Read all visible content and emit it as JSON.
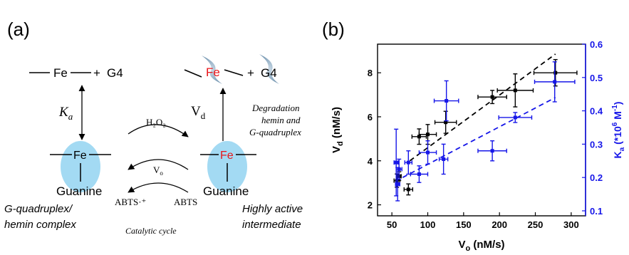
{
  "panel_a": {
    "label": "(a)",
    "top_left": {
      "fe": "Fe",
      "plus": "+",
      "g4": "G4"
    },
    "top_right": {
      "fe": "Fe",
      "plus": "+",
      "g4": "G4"
    },
    "ka_symbol": "K",
    "ka_sub": "a",
    "vd_symbol": "V",
    "vd_sub": "d",
    "h2o2": "H₂O₂",
    "vo_symbol": "V",
    "vo_sub": "o",
    "abts_radical": "ABTS·⁺",
    "abts": "ABTS",
    "degradation_line1": "Degradation",
    "degradation_line2": "hemin and",
    "degradation_line3": "G-quadruplex",
    "left_complex_fe": "Fe",
    "left_complex_base": "Guanine",
    "right_complex_fe": "Fe",
    "right_complex_base": "Guanine",
    "left_caption_line1": "G-quadruplex/",
    "left_caption_line2": "hemin complex",
    "center_caption": "Catalytic cycle",
    "right_caption_line1": "Highly active",
    "right_caption_line2": "intermediate",
    "colors": {
      "fe_red": "#e8161b",
      "blob": "#a3daf3",
      "arrow": "#000000"
    }
  },
  "panel_b": {
    "label": "(b)",
    "colors": {
      "black_series": "#000000",
      "blue_series": "#1616e8"
    }
  },
  "chart_data": {
    "type": "scatter",
    "title": "",
    "xlabel": "Vₒ (nM/s)",
    "ylabel_left": "V_d (nM/s)",
    "ylabel_right": "K_a (*10^6 M^-1)",
    "xlim": [
      30,
      320
    ],
    "ylim_left": [
      1.5,
      9.3
    ],
    "ylim_right": [
      0.085,
      0.6
    ],
    "x_ticks": [
      "50",
      "100",
      "150",
      "200",
      "250",
      "300"
    ],
    "y_left_ticks": [
      "2",
      "4",
      "6",
      "8"
    ],
    "y_right_ticks": [
      "0.1",
      "0.2",
      "0.3",
      "0.4",
      "0.5",
      "0.6"
    ],
    "x_tick_values": [
      50,
      100,
      150,
      200,
      250,
      300
    ],
    "y_left_tick_values": [
      2,
      4,
      6,
      8
    ],
    "y_right_tick_values": [
      0.1,
      0.2,
      0.3,
      0.4,
      0.5,
      0.6
    ],
    "series": [
      {
        "name": "Vd",
        "axis": "left",
        "points": [
          {
            "x": 57,
            "y": 3.1,
            "xerr": 4,
            "yerr": 0.3
          },
          {
            "x": 60,
            "y": 3.3,
            "xerr": 3,
            "yerr": 0.2
          },
          {
            "x": 73,
            "y": 2.7,
            "xerr": 6,
            "yerr": 0.25
          },
          {
            "x": 88,
            "y": 5.1,
            "xerr": 10,
            "yerr": 0.35
          },
          {
            "x": 100,
            "y": 5.2,
            "xerr": 12,
            "yerr": 0.45
          },
          {
            "x": 125,
            "y": 5.75,
            "xerr": 15,
            "yerr": 0.5
          },
          {
            "x": 190,
            "y": 6.9,
            "xerr": 20,
            "yerr": 0.3
          },
          {
            "x": 222,
            "y": 7.2,
            "xerr": 25,
            "yerr": 0.75
          },
          {
            "x": 278,
            "y": 8.0,
            "xerr": 30,
            "yerr": 0.6
          }
        ],
        "fit": {
          "x": [
            75,
            278
          ],
          "y": [
            4.0,
            8.85
          ]
        }
      },
      {
        "name": "Ka",
        "axis": "right",
        "points": [
          {
            "x": 56,
            "y": 0.245,
            "xerr": 3,
            "yerr": 0.1
          },
          {
            "x": 58,
            "y": 0.18,
            "xerr": 3,
            "yerr": 0.05
          },
          {
            "x": 60,
            "y": 0.225,
            "xerr": 4,
            "yerr": 0.03
          },
          {
            "x": 73,
            "y": 0.245,
            "xerr": 5,
            "yerr": 0.035
          },
          {
            "x": 88,
            "y": 0.21,
            "xerr": 12,
            "yerr": 0.025
          },
          {
            "x": 100,
            "y": 0.275,
            "xerr": 12,
            "yerr": 0.035
          },
          {
            "x": 122,
            "y": 0.255,
            "xerr": 6,
            "yerr": 0.045
          },
          {
            "x": 126,
            "y": 0.43,
            "xerr": 17,
            "yerr": 0.06
          },
          {
            "x": 190,
            "y": 0.28,
            "xerr": 20,
            "yerr": 0.03
          },
          {
            "x": 222,
            "y": 0.38,
            "xerr": 23,
            "yerr": 0.015
          },
          {
            "x": 277,
            "y": 0.487,
            "xerr": 28,
            "yerr": 0.06
          }
        ],
        "fit": {
          "x": [
            65,
            278
          ],
          "y": [
            0.2,
            0.44
          ]
        }
      }
    ]
  }
}
